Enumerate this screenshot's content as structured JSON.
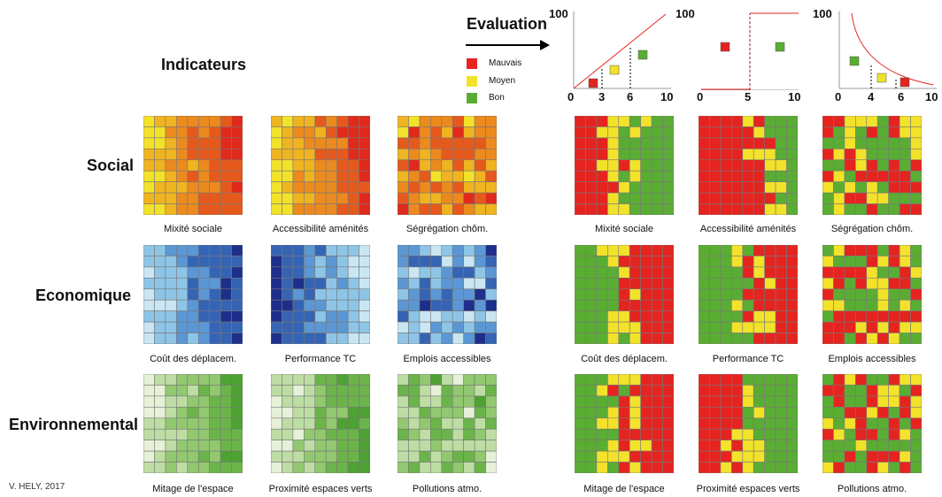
{
  "title_indicateurs": "Indicateurs",
  "title_evaluation": "Evaluation",
  "credit": "V. HELY, 2017",
  "rows": [
    {
      "label": "Social",
      "indicators": [
        "Mixité sociale",
        "Accessibilité aménités",
        "Ségrégation chôm."
      ]
    },
    {
      "label": "Economique",
      "indicators": [
        "Coût des déplacem.",
        "Performance TC",
        "Emplois accessibles"
      ]
    },
    {
      "label": "Environnemental",
      "indicators": [
        "Mitage de l'espace",
        "Proximité espaces verts",
        "Pollutions atmo."
      ]
    }
  ],
  "legend": [
    {
      "label": "Mauvais",
      "color": "#e52420"
    },
    {
      "label": "Moyen",
      "color": "#f3e22a"
    },
    {
      "label": "Bon",
      "color": "#5aad33"
    }
  ],
  "palettes": {
    "social": [
      "#f3e22a",
      "#f0b420",
      "#ec8a1e",
      "#e55a1c",
      "#e02a1c"
    ],
    "economique": [
      "#c9e6f2",
      "#8ec5e6",
      "#5b97d4",
      "#3564b4",
      "#1d2f8a"
    ],
    "environnemental": [
      "#e6f1d8",
      "#bedda4",
      "#92c86f",
      "#6bb44a",
      "#4ea233"
    ],
    "evaluation": [
      "#e52420",
      "#f3e22a",
      "#5aad33"
    ]
  },
  "mini_charts": [
    {
      "y_max_label": "100",
      "x_ticks": [
        "0",
        "3",
        "6",
        "10"
      ]
    },
    {
      "y_max_label": "100",
      "x_ticks": [
        "0",
        "5",
        "10"
      ]
    },
    {
      "y_max_label": "100",
      "x_ticks": [
        "0",
        "4",
        "6",
        "10"
      ]
    }
  ]
}
